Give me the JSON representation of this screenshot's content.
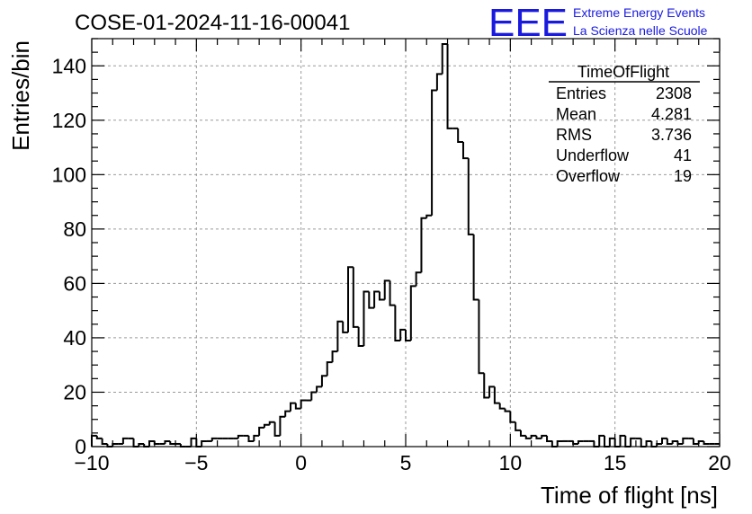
{
  "chart_data": {
    "type": "bar",
    "histogram_name": "TimeOfFlight",
    "title": "COSE-01-2024-11-16-00041",
    "xlabel": "Time of flight [ns]",
    "ylabel": "Entries/bin",
    "xlim": [
      -10,
      20
    ],
    "ylim": [
      0,
      150
    ],
    "grid": true,
    "x_ticks": [
      -10,
      -5,
      0,
      5,
      10,
      15,
      20
    ],
    "y_ticks": [
      0,
      20,
      40,
      60,
      80,
      100,
      120,
      140
    ],
    "bin_width": 0.25,
    "x_start": -10,
    "values": [
      4,
      3,
      1,
      0,
      1,
      1,
      3,
      3,
      0,
      1,
      0,
      2,
      1,
      1,
      2,
      1,
      1,
      0,
      0,
      3,
      0,
      2,
      2,
      3,
      3,
      3,
      3,
      3,
      4,
      4,
      2,
      4,
      7,
      8,
      9,
      4,
      11,
      13,
      16,
      14,
      17,
      17,
      20,
      22,
      26,
      31,
      35,
      46,
      42,
      66,
      44,
      37,
      57,
      51,
      57,
      54,
      61,
      52,
      39,
      43,
      39,
      59,
      64,
      84,
      85,
      131,
      137,
      148,
      117,
      117,
      112,
      106,
      78,
      54,
      27,
      18,
      22,
      16,
      14,
      13,
      9,
      6,
      4,
      3,
      4,
      3,
      4,
      2,
      0,
      2,
      2,
      2,
      1,
      2,
      2,
      2,
      0,
      4,
      0,
      3,
      0,
      4,
      0,
      3,
      3,
      0,
      2,
      0,
      1,
      3,
      1,
      2,
      1,
      3,
      3,
      1,
      2,
      1,
      1,
      1
    ]
  },
  "header": {
    "title": "COSE-01-2024-11-16-00041",
    "logo_text": "EEE",
    "logo_line1": "Extreme Energy Events",
    "logo_line2": "La Scienza nelle Scuole",
    "logo_color": "#1a1adf"
  },
  "stats": {
    "title": "TimeOfFlight",
    "rows": [
      {
        "label": "Entries",
        "value": "2308"
      },
      {
        "label": "Mean",
        "value": "4.281"
      },
      {
        "label": "RMS",
        "value": "3.736"
      },
      {
        "label": "Underflow",
        "value": "41"
      },
      {
        "label": "Overflow",
        "value": "19"
      }
    ]
  }
}
